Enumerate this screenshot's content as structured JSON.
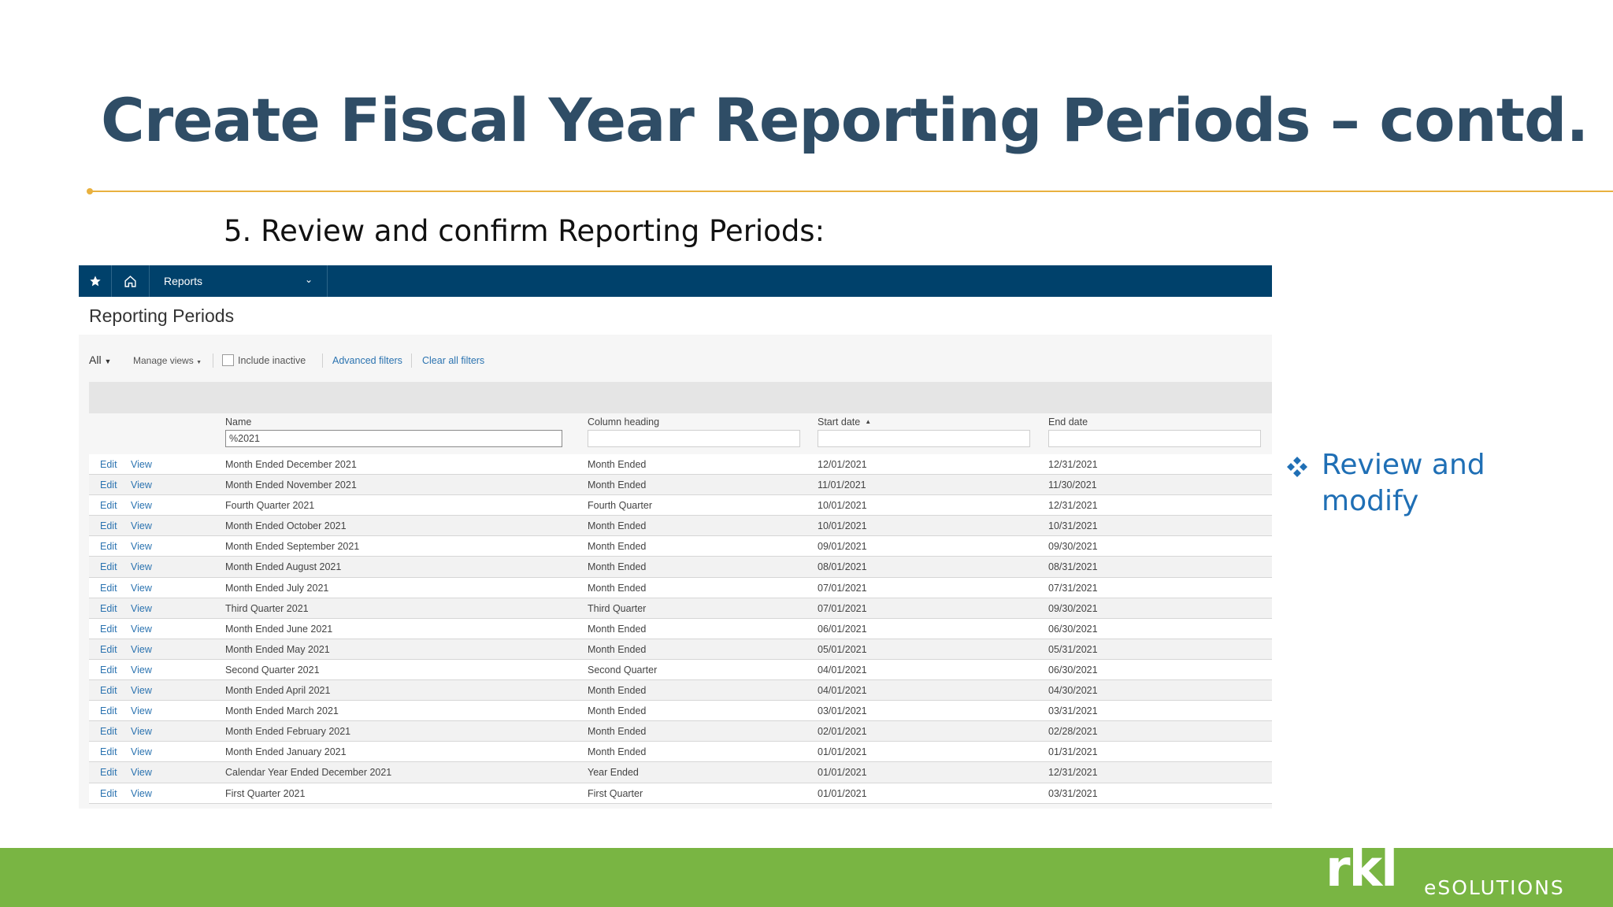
{
  "slide": {
    "title": "Create Fiscal Year Reporting Periods – contd.",
    "step": "5. Review and confirm Reporting Periods:",
    "bullet": "Review and modify"
  },
  "app": {
    "nav": {
      "section": "Reports"
    },
    "page_title": "Reporting Periods",
    "filters": {
      "view": "All",
      "manage_views": "Manage views",
      "include_inactive": "Include inactive",
      "include_inactive_checked": false,
      "advanced_filters": "Advanced filters",
      "clear_all_filters": "Clear all filters"
    },
    "columns": {
      "name": "Name",
      "column_heading": "Column heading",
      "start_date": "Start date",
      "end_date": "End date"
    },
    "name_filter_value": "%2021",
    "row_actions": {
      "edit": "Edit",
      "view": "View"
    },
    "rows": [
      {
        "name": "Month Ended December 2021",
        "heading": "Month Ended",
        "start": "12/01/2021",
        "end": "12/31/2021"
      },
      {
        "name": "Month Ended November 2021",
        "heading": "Month Ended",
        "start": "11/01/2021",
        "end": "11/30/2021"
      },
      {
        "name": "Fourth Quarter 2021",
        "heading": "Fourth Quarter",
        "start": "10/01/2021",
        "end": "12/31/2021"
      },
      {
        "name": "Month Ended October 2021",
        "heading": "Month Ended",
        "start": "10/01/2021",
        "end": "10/31/2021"
      },
      {
        "name": "Month Ended September 2021",
        "heading": "Month Ended",
        "start": "09/01/2021",
        "end": "09/30/2021"
      },
      {
        "name": "Month Ended August 2021",
        "heading": "Month Ended",
        "start": "08/01/2021",
        "end": "08/31/2021"
      },
      {
        "name": "Month Ended July 2021",
        "heading": "Month Ended",
        "start": "07/01/2021",
        "end": "07/31/2021"
      },
      {
        "name": "Third Quarter 2021",
        "heading": "Third Quarter",
        "start": "07/01/2021",
        "end": "09/30/2021"
      },
      {
        "name": "Month Ended June 2021",
        "heading": "Month Ended",
        "start": "06/01/2021",
        "end": "06/30/2021"
      },
      {
        "name": "Month Ended May 2021",
        "heading": "Month Ended",
        "start": "05/01/2021",
        "end": "05/31/2021"
      },
      {
        "name": "Second Quarter 2021",
        "heading": "Second Quarter",
        "start": "04/01/2021",
        "end": "06/30/2021"
      },
      {
        "name": "Month Ended April 2021",
        "heading": "Month Ended",
        "start": "04/01/2021",
        "end": "04/30/2021"
      },
      {
        "name": "Month Ended March 2021",
        "heading": "Month Ended",
        "start": "03/01/2021",
        "end": "03/31/2021"
      },
      {
        "name": "Month Ended February 2021",
        "heading": "Month Ended",
        "start": "02/01/2021",
        "end": "02/28/2021"
      },
      {
        "name": "Month Ended January 2021",
        "heading": "Month Ended",
        "start": "01/01/2021",
        "end": "01/31/2021"
      },
      {
        "name": "Calendar Year Ended December 2021",
        "heading": "Year Ended",
        "start": "01/01/2021",
        "end": "12/31/2021"
      },
      {
        "name": "First Quarter 2021",
        "heading": "First Quarter",
        "start": "01/01/2021",
        "end": "03/31/2021"
      }
    ]
  },
  "footer": {
    "logo_main": "rkl",
    "logo_sub": "eSOLUTIONS"
  },
  "colors": {
    "title": "#2f4d66",
    "rule": "#e9b13f",
    "nav": "#00416b",
    "link": "#2b73b0",
    "bullet": "#1f6fb5",
    "footer": "#79b543"
  },
  "icons": {
    "nav_star": "star-icon",
    "nav_home": "home-icon",
    "nav_dropdown": "chevron-down-icon",
    "bullet": "diamond-bullet-icon",
    "sort": "sort-ascending-icon"
  }
}
